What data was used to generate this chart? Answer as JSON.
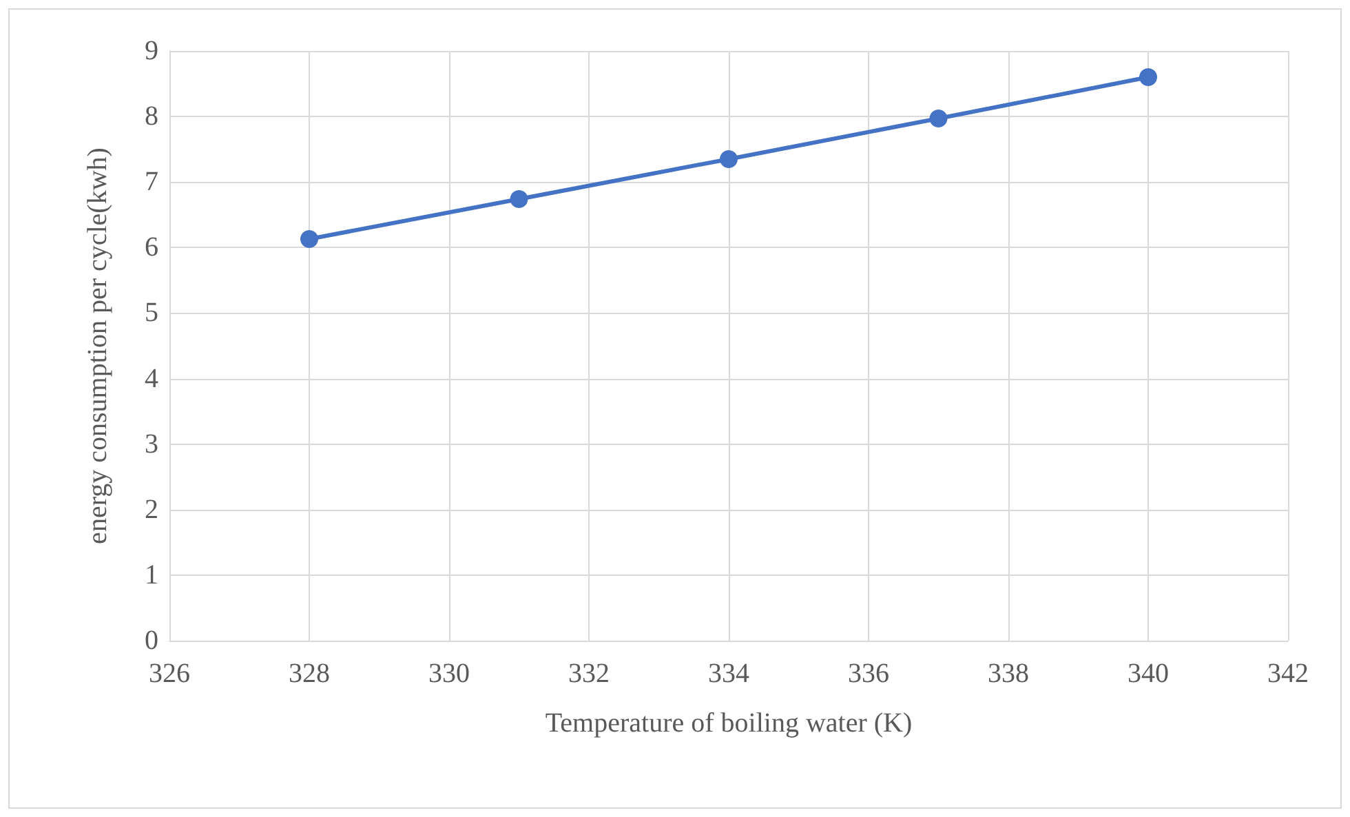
{
  "chart_data": {
    "type": "line",
    "xlabel": "Temperature of boiling water (K)",
    "ylabel": "energy consumption per cycle(kwh)",
    "x": [
      328,
      331,
      334,
      337,
      340
    ],
    "series": [
      {
        "color": "#4472c4",
        "values": [
          6.13,
          6.74,
          7.35,
          7.97,
          8.6
        ]
      }
    ],
    "xlim": [
      326,
      342
    ],
    "xticks": [
      326,
      328,
      330,
      332,
      334,
      336,
      338,
      340,
      342
    ],
    "ylim": [
      0,
      9
    ],
    "yticks": [
      0,
      1,
      2,
      3,
      4,
      5,
      6,
      7,
      8,
      9
    ],
    "grid": true,
    "marker": "circle",
    "line_style": "solid"
  }
}
